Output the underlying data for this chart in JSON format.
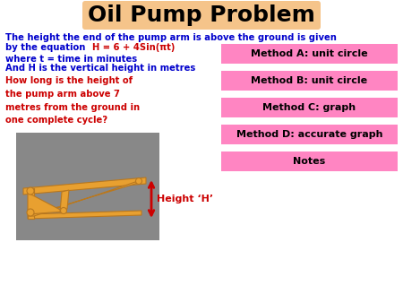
{
  "title": "Oil Pump Problem",
  "title_bg": "#F5C48A",
  "title_fontsize": 18,
  "title_color": "#000000",
  "line1_blue": "The height the end of the pump arm is above the ground is given",
  "line2_blue": "by the equation",
  "equation": "H = 6 + 4Sin(πt)",
  "line3_blue": "where t = time in minutes",
  "line4_blue": "And H is the vertical height in metres",
  "question": "How long is the height of\nthe pump arm above 7\nmetres from the ground in\none complete cycle?",
  "height_label": "Height ‘H’",
  "blue_color": "#0000CC",
  "red_color": "#CC0000",
  "method_bg": "#FF85C2",
  "methods": [
    "Method A: unit circle",
    "Method B: unit circle",
    "Method C: graph",
    "Method D: accurate graph",
    "Notes"
  ],
  "bg_color": "#FFFFFF",
  "pump_color": "#E8A030",
  "pump_dark": "#B87820",
  "gray_bg": "#888888"
}
